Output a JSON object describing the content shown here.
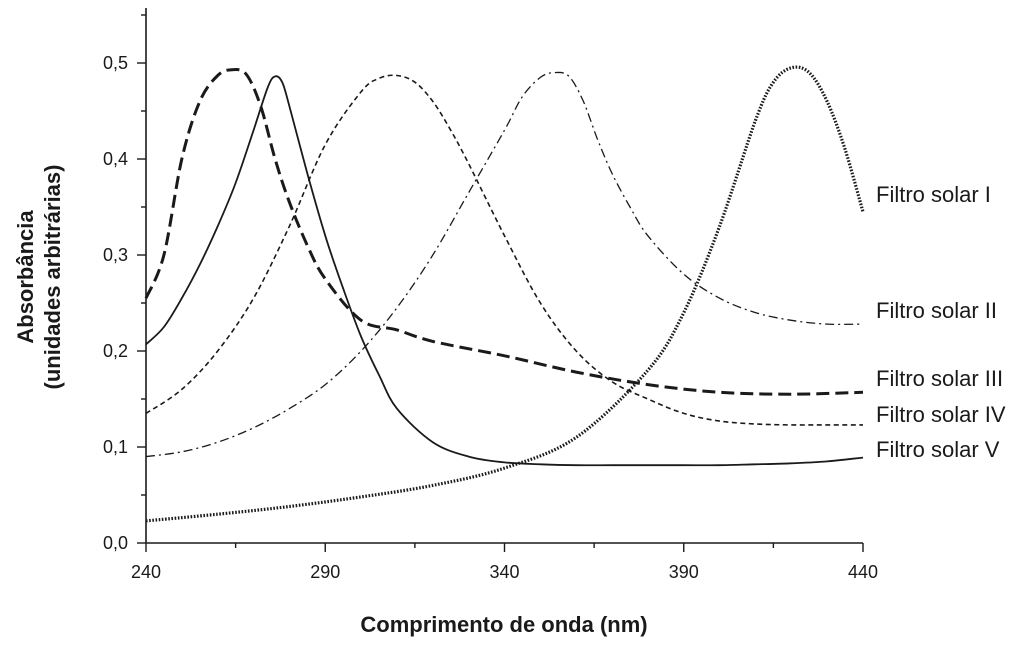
{
  "chart_data": {
    "type": "line",
    "xlabel": "Comprimento de onda (nm)",
    "ylabel_line1": "Absorbância",
    "ylabel_line2": "(unidades arbitrárias)",
    "xlim": [
      240,
      440
    ],
    "ylim": [
      0,
      0.55
    ],
    "x_ticks": [
      240,
      290,
      340,
      390,
      440
    ],
    "x_tick_labels": [
      "240",
      "290",
      "340",
      "390",
      "440"
    ],
    "x_minor_ticks": [
      265,
      315,
      365,
      415
    ],
    "y_ticks": [
      0.0,
      0.1,
      0.2,
      0.3,
      0.4,
      0.5
    ],
    "y_tick_labels": [
      "0,0",
      "0,1",
      "0,2",
      "0,3",
      "0,4",
      "0,5"
    ],
    "y_minor_ticks": [
      0.05,
      0.15,
      0.25,
      0.35,
      0.45,
      0.55
    ],
    "grid": false,
    "series": [
      {
        "name": "Filtro solar I",
        "style": "dotted-heavy",
        "x": [
          240,
          260,
          280,
          300,
          320,
          340,
          360,
          380,
          390,
          400,
          410,
          415,
          420,
          425,
          430,
          435,
          440
        ],
        "y": [
          0.023,
          0.03,
          0.038,
          0.048,
          0.06,
          0.078,
          0.11,
          0.18,
          0.24,
          0.33,
          0.44,
          0.48,
          0.495,
          0.49,
          0.46,
          0.41,
          0.345
        ]
      },
      {
        "name": "Filtro solar II",
        "style": "dash-dot",
        "x": [
          240,
          250,
          260,
          270,
          280,
          290,
          300,
          310,
          320,
          330,
          340,
          345,
          350,
          354,
          358,
          362,
          366,
          370,
          375,
          380,
          390,
          400,
          410,
          420,
          430,
          440
        ],
        "y": [
          0.09,
          0.095,
          0.105,
          0.12,
          0.14,
          0.165,
          0.2,
          0.245,
          0.3,
          0.365,
          0.43,
          0.465,
          0.485,
          0.49,
          0.486,
          0.46,
          0.42,
          0.385,
          0.35,
          0.32,
          0.28,
          0.255,
          0.24,
          0.232,
          0.228,
          0.228
        ]
      },
      {
        "name": "Filtro solar III",
        "style": "dashed-heavy",
        "x": [
          240,
          245,
          250,
          255,
          260,
          264,
          268,
          272,
          276,
          280,
          285,
          290,
          300,
          310,
          320,
          340,
          360,
          380,
          400,
          420,
          440
        ],
        "y": [
          0.255,
          0.3,
          0.4,
          0.46,
          0.487,
          0.493,
          0.488,
          0.455,
          0.4,
          0.355,
          0.31,
          0.275,
          0.232,
          0.222,
          0.21,
          0.195,
          0.178,
          0.165,
          0.157,
          0.155,
          0.157
        ]
      },
      {
        "name": "Filtro solar IV",
        "style": "dashed-fine",
        "x": [
          240,
          250,
          260,
          270,
          280,
          290,
          300,
          305,
          310,
          315,
          320,
          325,
          330,
          340,
          350,
          360,
          370,
          380,
          390,
          400,
          410,
          420,
          430,
          440
        ],
        "y": [
          0.135,
          0.16,
          0.2,
          0.255,
          0.33,
          0.415,
          0.47,
          0.484,
          0.487,
          0.48,
          0.46,
          0.43,
          0.395,
          0.32,
          0.25,
          0.2,
          0.168,
          0.15,
          0.135,
          0.127,
          0.124,
          0.123,
          0.123,
          0.123
        ]
      },
      {
        "name": "Filtro solar V",
        "style": "solid-thin",
        "x": [
          240,
          245,
          250,
          255,
          260,
          265,
          270,
          274,
          276,
          278,
          280,
          285,
          290,
          295,
          300,
          305,
          310,
          320,
          330,
          340,
          350,
          360,
          370,
          380,
          390,
          400,
          410,
          420,
          430,
          440
        ],
        "y": [
          0.207,
          0.225,
          0.255,
          0.29,
          0.33,
          0.375,
          0.43,
          0.475,
          0.486,
          0.48,
          0.455,
          0.385,
          0.32,
          0.265,
          0.215,
          0.175,
          0.14,
          0.105,
          0.09,
          0.084,
          0.082,
          0.081,
          0.081,
          0.081,
          0.081,
          0.081,
          0.082,
          0.083,
          0.085,
          0.089
        ]
      }
    ]
  }
}
